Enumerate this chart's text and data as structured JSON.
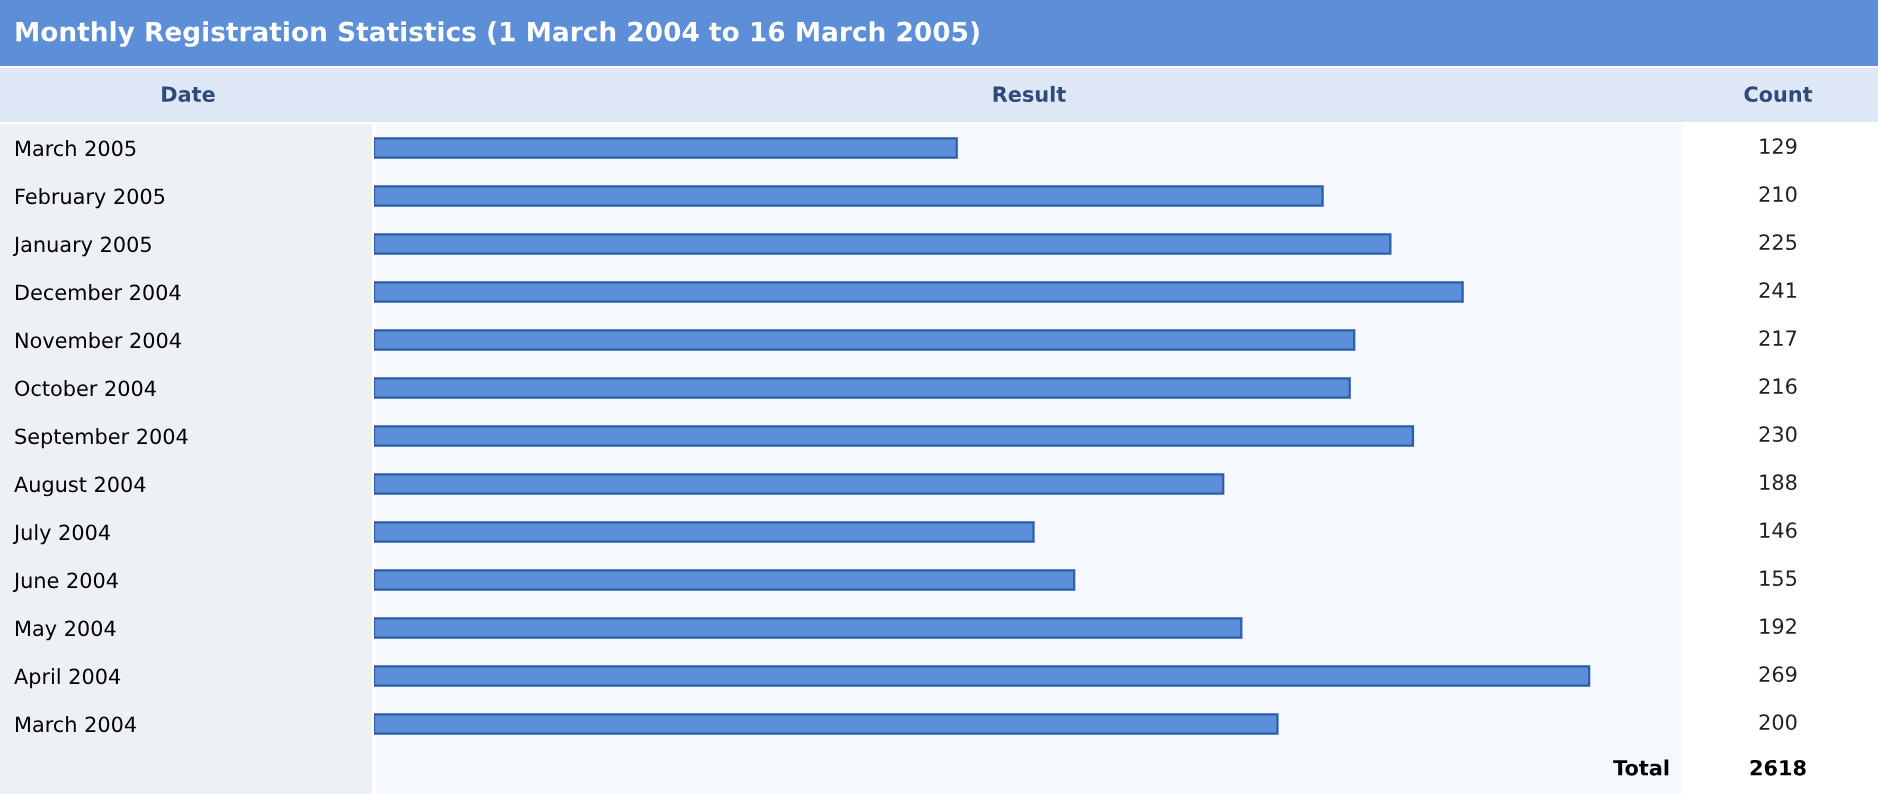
{
  "chart_data": {
    "type": "bar",
    "orientation": "horizontal",
    "title": "Monthly Registration Statistics (1 March 2004 to 16 March 2005)",
    "ylabel": "Date",
    "xlabel": "Result",
    "categories": [
      "March 2005",
      "February 2005",
      "January 2005",
      "December 2004",
      "November 2004",
      "October 2004",
      "September 2004",
      "August 2004",
      "July 2004",
      "June 2004",
      "May 2004",
      "April 2004",
      "March 2004"
    ],
    "values": [
      129,
      210,
      225,
      241,
      217,
      216,
      230,
      188,
      146,
      155,
      192,
      269,
      200
    ],
    "color": "#5b8fd9",
    "xlim": [
      0,
      290
    ],
    "data_labels": true,
    "tick_labels": "y",
    "grid": false,
    "annotations": [
      "Count",
      "Total",
      "2618"
    ]
  }
}
